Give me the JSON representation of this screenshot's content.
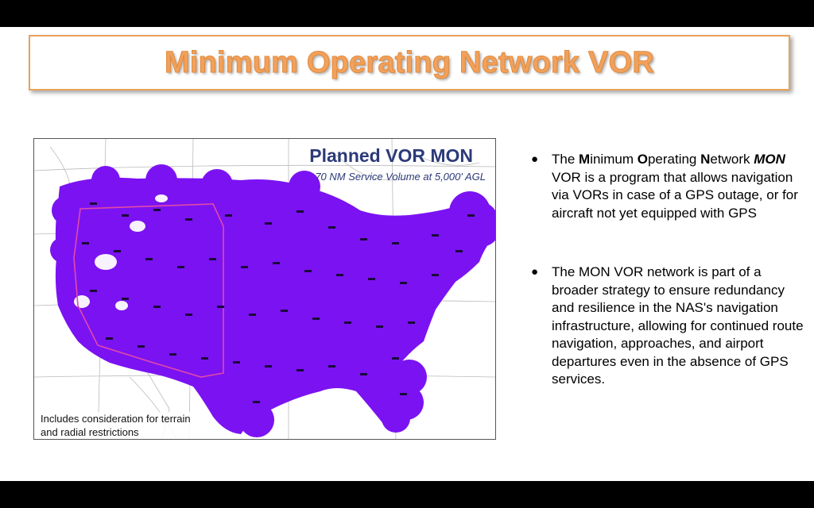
{
  "slide": {
    "title": "Minimum Operating Network VOR"
  },
  "map": {
    "title": "Planned VOR MON",
    "subtitle": "70 NM Service Volume at 5,000' AGL",
    "note_line1": "Includes consideration for terrain",
    "note_line2": "and radial restrictions",
    "coverage_color": "#7b12f2",
    "boundary_color": "#e04aa8"
  },
  "bullets": {
    "b1": {
      "w1_bold": "M",
      "w1_rest": "inimum ",
      "w2_bold": "O",
      "w2_rest": "perating ",
      "w3_bold": "N",
      "w3_rest": "etwork",
      "mon": "MON",
      "rest": " VOR is a program that allows navigation via VORs in case of a GPS outage, or for aircraft not yet equipped with GPS"
    },
    "b2_text": "The MON VOR network is part of a broader strategy to ensure redundancy and resilience in the NAS's navigation infrastructure, allowing for continued route navigation, approaches, and airport departures even in the absence of GPS services."
  }
}
